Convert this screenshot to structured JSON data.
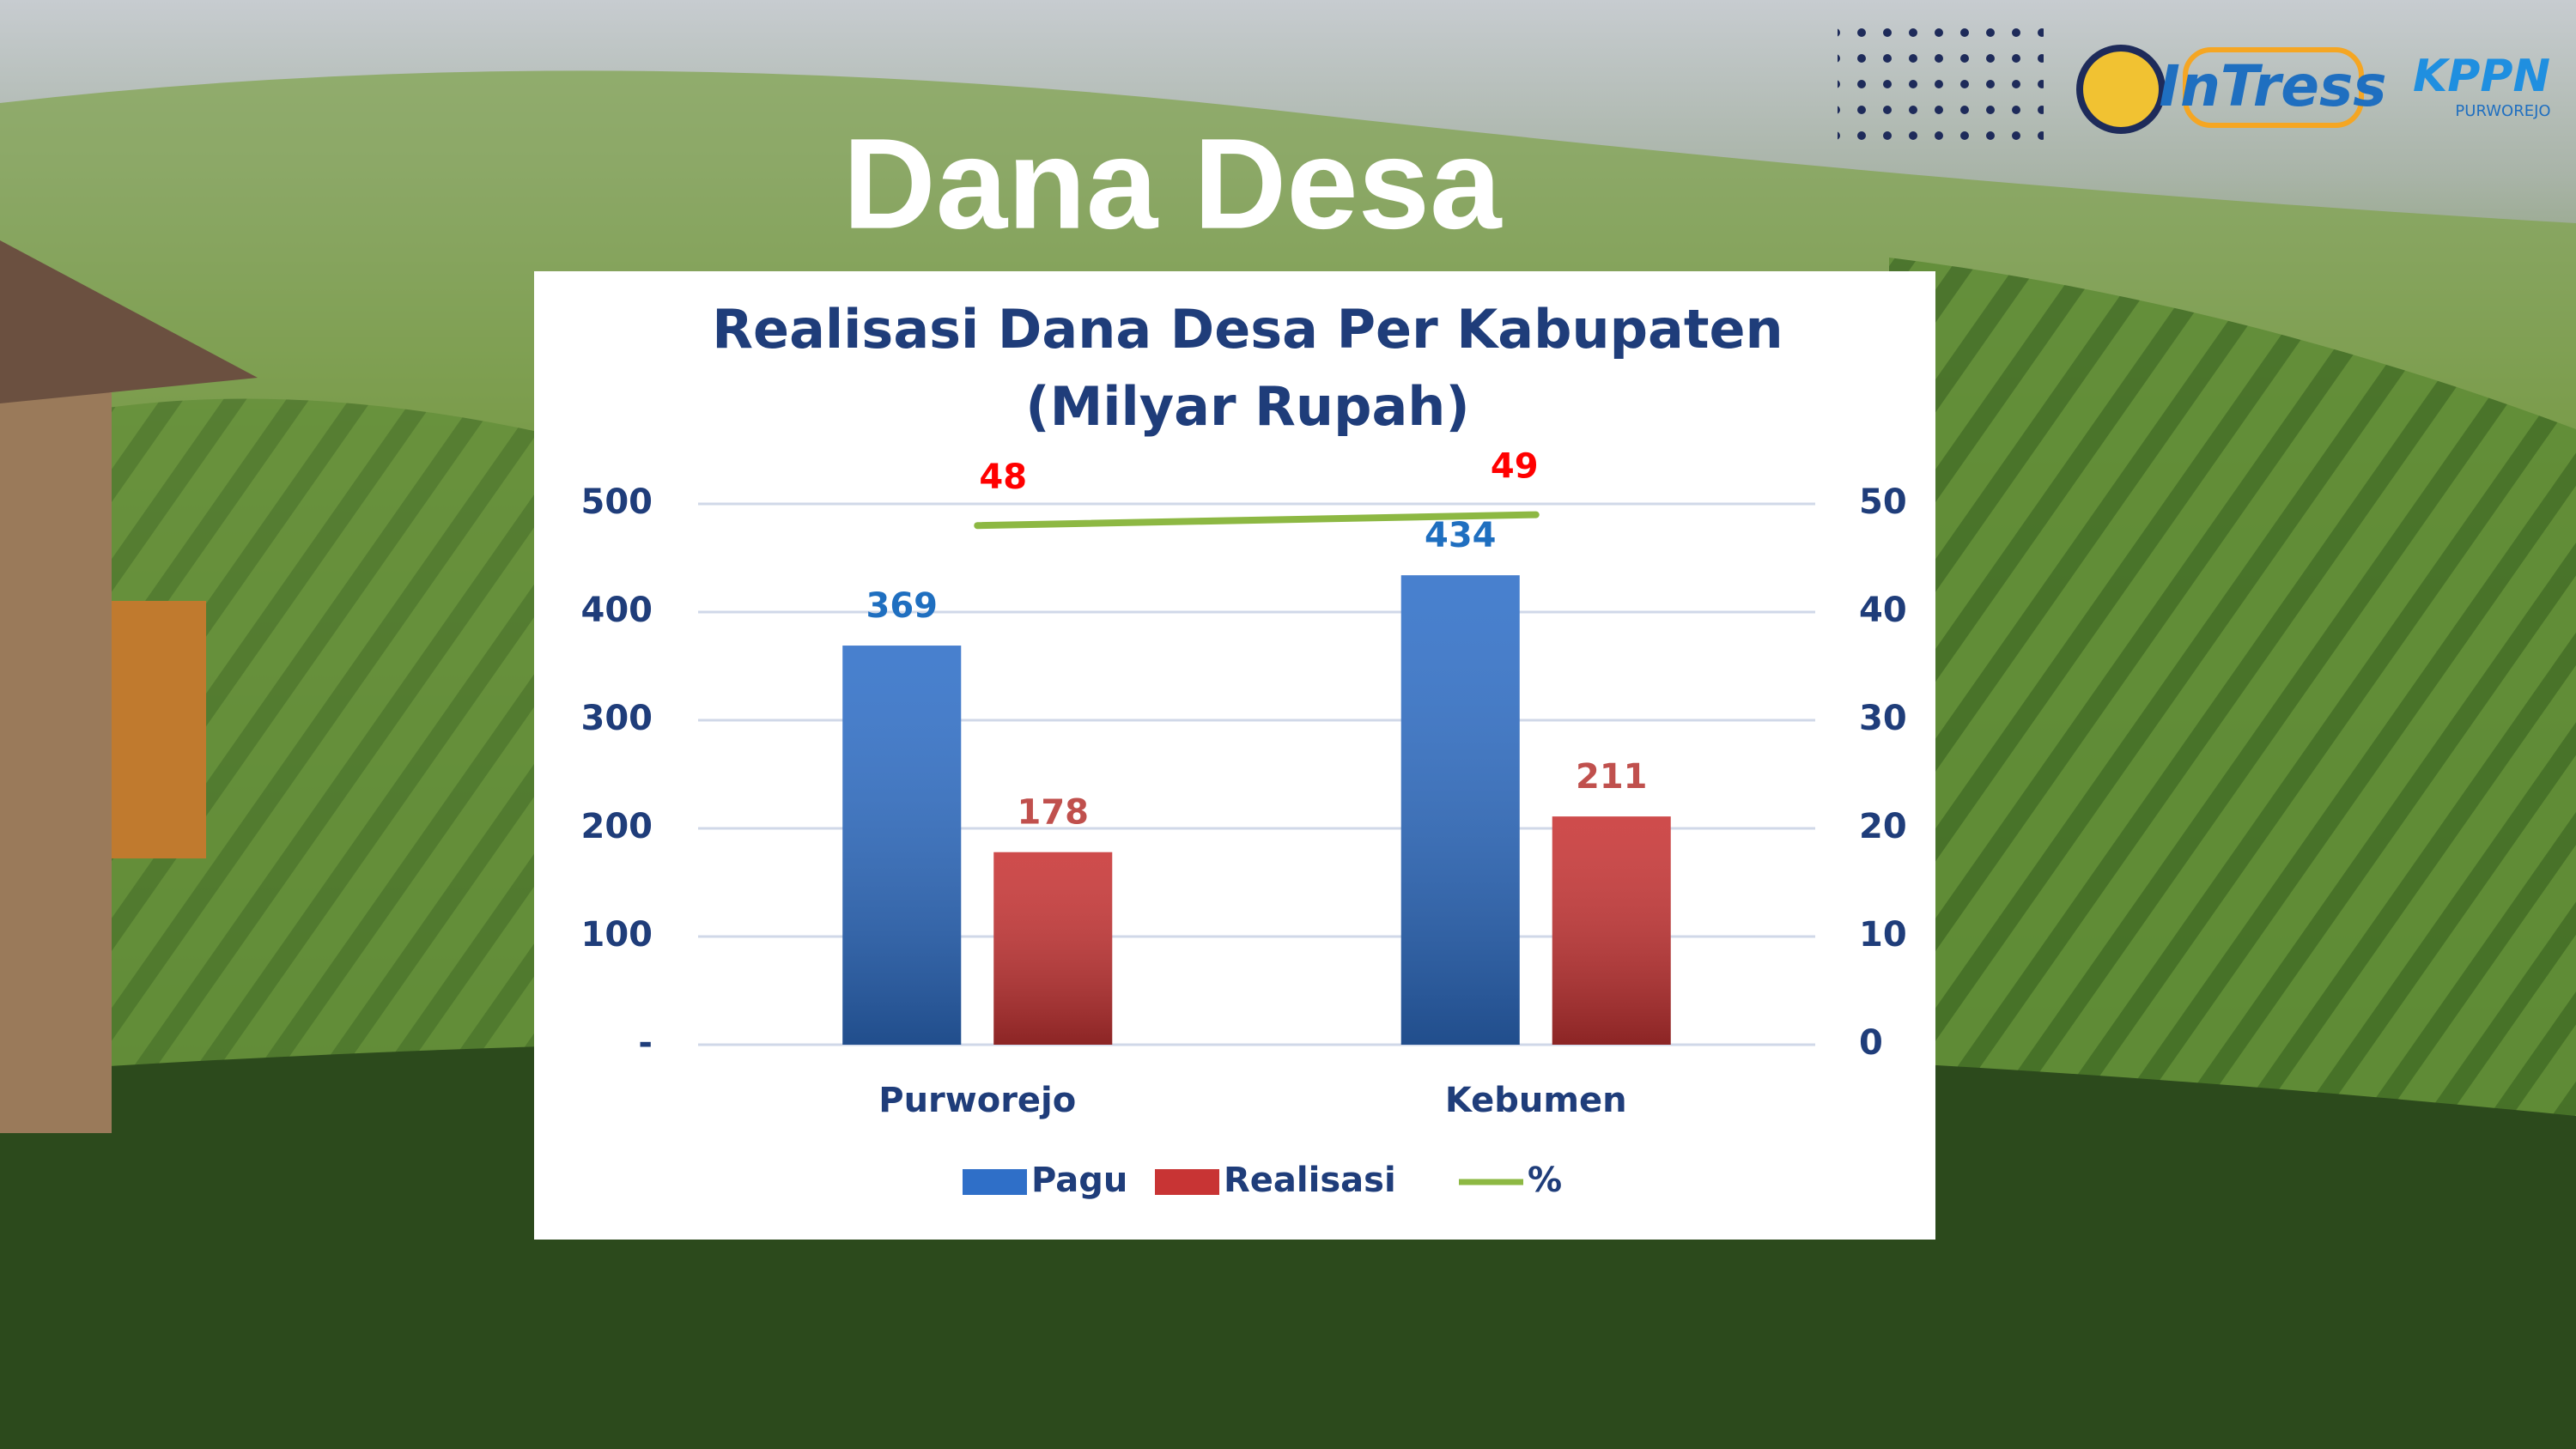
{
  "header": {
    "heading": "Dana Desa",
    "logos": [
      "InTress",
      "KPPN",
      "PURWOREJO"
    ]
  },
  "chart_data": {
    "type": "bar",
    "title": "Realisasi Dana Desa Per Kabupaten",
    "subtitle": "(Milyar Rupah)",
    "categories": [
      "Purworejo",
      "Kebumen"
    ],
    "series": [
      {
        "name": "Pagu",
        "color": "#2f6fc8",
        "label_color": "#1f6fc0",
        "values": [
          369,
          434
        ]
      },
      {
        "name": "Realisasi",
        "color": "#c83434",
        "label_color": "#c0504d",
        "values": [
          178,
          211
        ]
      },
      {
        "name": "%",
        "type": "line",
        "axis": "y2",
        "color": "#8db843",
        "label_color": "#ff0000",
        "values": [
          48,
          49
        ]
      }
    ],
    "ylim": [
      0,
      500
    ],
    "yticks": [
      {
        "value": 0,
        "label": "-"
      },
      100,
      200,
      300,
      400,
      500
    ],
    "y2lim": [
      0,
      50
    ],
    "y2ticks": [
      0,
      10,
      20,
      30,
      40,
      50
    ],
    "grid": true,
    "legend": "bottom"
  }
}
